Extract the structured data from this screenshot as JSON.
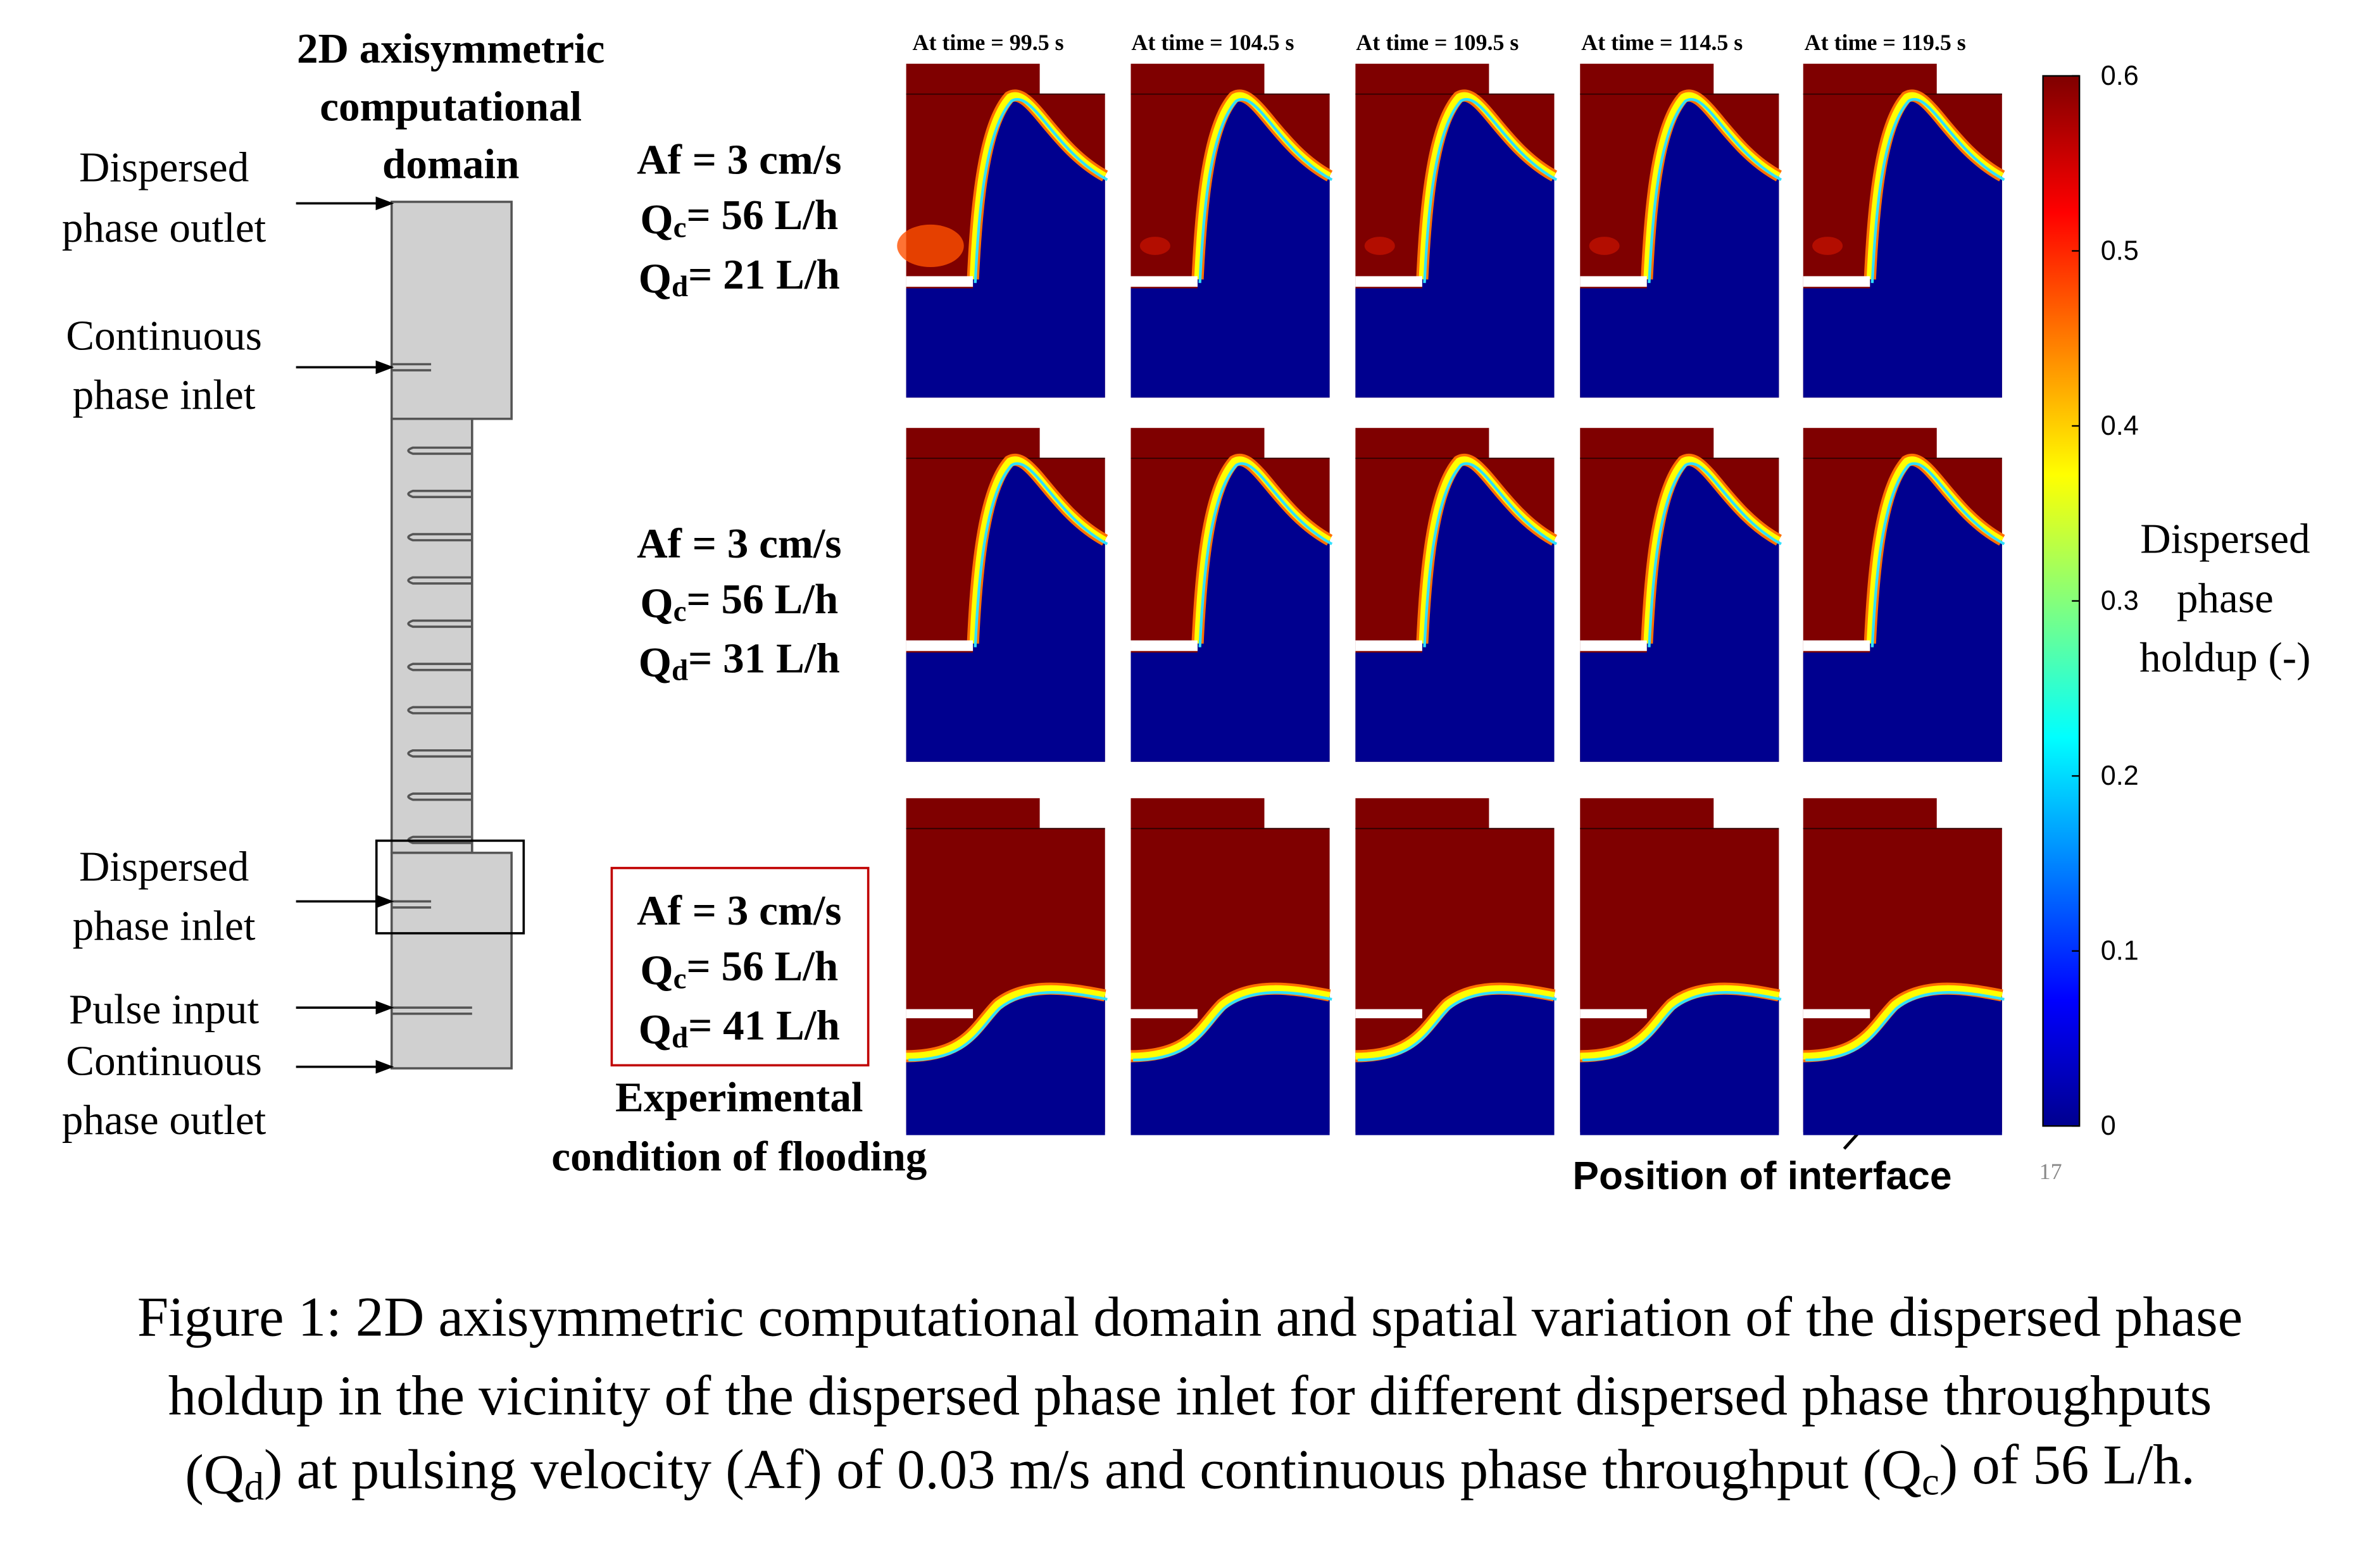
{
  "domain": {
    "title_lines": [
      "2D axisymmetric",
      "computational",
      "domain"
    ],
    "labels": [
      {
        "lines": [
          "Dispersed",
          "phase outlet"
        ]
      },
      {
        "lines": [
          "Continuous",
          "phase inlet"
        ]
      },
      {
        "lines": [
          "Dispersed",
          "phase inlet"
        ]
      },
      {
        "lines": [
          "Pulse input"
        ]
      },
      {
        "lines": [
          "Continuous",
          "phase outlet"
        ]
      }
    ]
  },
  "times": [
    "At time = 99.5 s",
    "At time = 104.5 s",
    "At time = 109.5 s",
    "At time = 114.5 s",
    "At time = 119.5 s"
  ],
  "conditions": [
    {
      "af": "Af = 3 cm/s",
      "qc": [
        "Q",
        "c",
        "= 56 L/h"
      ],
      "qd": [
        "Q",
        "d",
        "= 21 L/h"
      ]
    },
    {
      "af": "Af = 3 cm/s",
      "qc": [
        "Q",
        "c",
        "= 56 L/h"
      ],
      "qd": [
        "Q",
        "d",
        "= 31 L/h"
      ]
    },
    {
      "af": "Af = 3 cm/s",
      "qc": [
        "Q",
        "c",
        "= 56 L/h"
      ],
      "qd": [
        "Q",
        "d",
        "= 41 L/h"
      ]
    }
  ],
  "flooding_note": [
    "Experimental",
    "condition of flooding"
  ],
  "interface_note": "Position of interface",
  "page_number": "17",
  "colorbar": {
    "lim": [
      0,
      0.6
    ],
    "ticks": [
      0,
      0.1,
      0.2,
      0.3,
      0.4,
      0.5,
      0.6
    ],
    "label_lines": [
      "Dispersed",
      "phase",
      "holdup (-)"
    ]
  },
  "caption": {
    "lines": [
      [
        "Figure 1: 2D axisymmetric computational domain and spatial variation of the dispersed phase"
      ],
      [
        "holdup in the vicinity of the dispersed phase inlet for different dispersed phase throughputs"
      ],
      [
        "(Q",
        "d",
        ") at pulsing velocity (Af) of 0.03 m/s and continuous phase throughput (Q",
        "c",
        ") of 56 L/h."
      ]
    ]
  }
}
